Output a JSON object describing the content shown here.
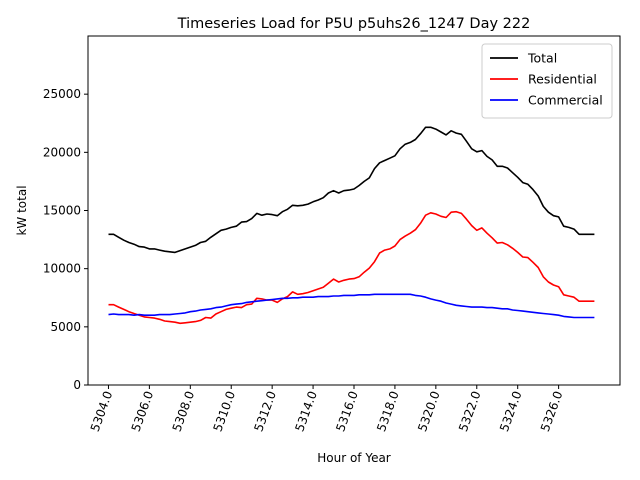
{
  "chart_data": {
    "type": "line",
    "title": "Timeseries Load for P5U p5uhs26_1247  Day 222",
    "xlabel": "Hour of Year",
    "ylabel": "kW total",
    "xlim": [
      5303.0,
      5329.0
    ],
    "ylim": [
      0,
      30000
    ],
    "x_ticks": [
      5304,
      5306,
      5308,
      5310,
      5312,
      5314,
      5316,
      5318,
      5320,
      5322,
      5324,
      5326
    ],
    "x_tick_labels": [
      "5304.0",
      "5306.0",
      "5308.0",
      "5310.0",
      "5312.0",
      "5314.0",
      "5316.0",
      "5318.0",
      "5320.0",
      "5322.0",
      "5324.0",
      "5326.0"
    ],
    "y_ticks": [
      0,
      5000,
      10000,
      15000,
      20000,
      25000
    ],
    "y_tick_labels": [
      "0",
      "5000",
      "10000",
      "15000",
      "20000",
      "25000"
    ],
    "legend_position": "top-right",
    "x": [
      5304.0,
      5304.25,
      5304.5,
      5304.75,
      5305.0,
      5305.25,
      5305.5,
      5305.75,
      5306.0,
      5306.25,
      5306.5,
      5306.75,
      5307.0,
      5307.25,
      5307.5,
      5307.75,
      5308.0,
      5308.25,
      5308.5,
      5308.75,
      5309.0,
      5309.25,
      5309.5,
      5309.75,
      5310.0,
      5310.25,
      5310.5,
      5310.75,
      5311.0,
      5311.25,
      5311.5,
      5311.75,
      5312.0,
      5312.25,
      5312.5,
      5312.75,
      5313.0,
      5313.25,
      5313.5,
      5313.75,
      5314.0,
      5314.25,
      5314.5,
      5314.75,
      5315.0,
      5315.25,
      5315.5,
      5315.75,
      5316.0,
      5316.25,
      5316.5,
      5316.75,
      5317.0,
      5317.25,
      5317.5,
      5317.75,
      5318.0,
      5318.25,
      5318.5,
      5318.75,
      5319.0,
      5319.25,
      5319.5,
      5319.75,
      5320.0,
      5320.25,
      5320.5,
      5320.75,
      5321.0,
      5321.25,
      5321.5,
      5321.75,
      5322.0,
      5322.25,
      5322.5,
      5322.75,
      5323.0,
      5323.25,
      5323.5,
      5323.75,
      5324.0,
      5324.25,
      5324.5,
      5324.75,
      5325.0,
      5325.25,
      5325.5,
      5325.75,
      5326.0,
      5326.25,
      5326.5,
      5326.75,
      5327.0,
      5327.25,
      5327.5,
      5327.75
    ],
    "series": [
      {
        "name": "Total",
        "color": "#000000",
        "values": [
          12950,
          12950,
          12700,
          12450,
          12250,
          12100,
          11900,
          11850,
          11700,
          11700,
          11600,
          11500,
          11450,
          11400,
          11550,
          11700,
          11850,
          12000,
          12250,
          12350,
          12700,
          13000,
          13300,
          13400,
          13550,
          13650,
          14000,
          14050,
          14300,
          14750,
          14600,
          14700,
          14650,
          14550,
          14900,
          15100,
          15450,
          15400,
          15450,
          15550,
          15750,
          15900,
          16100,
          16500,
          16700,
          16500,
          16700,
          16750,
          16850,
          17150,
          17500,
          17800,
          18600,
          19100,
          19300,
          19500,
          19700,
          20300,
          20700,
          20850,
          21100,
          21600,
          22150,
          22150,
          22000,
          21750,
          21500,
          21850,
          21650,
          21550,
          20950,
          20300,
          20050,
          20150,
          19650,
          19350,
          18800,
          18800,
          18650,
          18250,
          17850,
          17400,
          17250,
          16800,
          16250,
          15350,
          14850,
          14550,
          14450,
          13650,
          13550,
          13400,
          12950,
          12950,
          12950,
          12950
        ]
      },
      {
        "name": "Residential",
        "color": "#ff0000",
        "values": [
          6900,
          6900,
          6700,
          6500,
          6300,
          6150,
          6000,
          5850,
          5800,
          5750,
          5650,
          5500,
          5450,
          5400,
          5300,
          5350,
          5400,
          5450,
          5550,
          5800,
          5750,
          6100,
          6300,
          6500,
          6600,
          6700,
          6650,
          6900,
          6950,
          7450,
          7400,
          7300,
          7300,
          7100,
          7400,
          7600,
          8000,
          7800,
          7850,
          7950,
          8100,
          8250,
          8400,
          8750,
          9100,
          8850,
          9000,
          9100,
          9150,
          9300,
          9700,
          10050,
          10600,
          11350,
          11600,
          11700,
          11950,
          12500,
          12800,
          13050,
          13350,
          13900,
          14600,
          14800,
          14700,
          14500,
          14400,
          14850,
          14900,
          14750,
          14250,
          13700,
          13300,
          13500,
          13050,
          12650,
          12200,
          12250,
          12050,
          11750,
          11400,
          11000,
          10950,
          10550,
          10100,
          9300,
          8850,
          8600,
          8450,
          7750,
          7650,
          7550,
          7200,
          7200,
          7200,
          7200
        ]
      },
      {
        "name": "Commercial",
        "color": "#0000ff",
        "values": [
          6050,
          6100,
          6050,
          6050,
          6050,
          6000,
          6050,
          6000,
          6000,
          6000,
          6050,
          6050,
          6050,
          6100,
          6150,
          6200,
          6300,
          6350,
          6450,
          6500,
          6550,
          6650,
          6700,
          6800,
          6900,
          6950,
          7000,
          7100,
          7150,
          7200,
          7250,
          7300,
          7350,
          7400,
          7450,
          7450,
          7500,
          7500,
          7550,
          7550,
          7550,
          7600,
          7600,
          7600,
          7650,
          7650,
          7700,
          7700,
          7700,
          7750,
          7750,
          7750,
          7800,
          7800,
          7800,
          7800,
          7800,
          7800,
          7800,
          7800,
          7700,
          7650,
          7550,
          7400,
          7300,
          7200,
          7050,
          6950,
          6850,
          6800,
          6750,
          6700,
          6700,
          6700,
          6650,
          6650,
          6600,
          6550,
          6550,
          6450,
          6400,
          6350,
          6300,
          6250,
          6200,
          6150,
          6100,
          6050,
          6000,
          5900,
          5850,
          5800,
          5800,
          5800,
          5800,
          5800
        ]
      }
    ]
  }
}
